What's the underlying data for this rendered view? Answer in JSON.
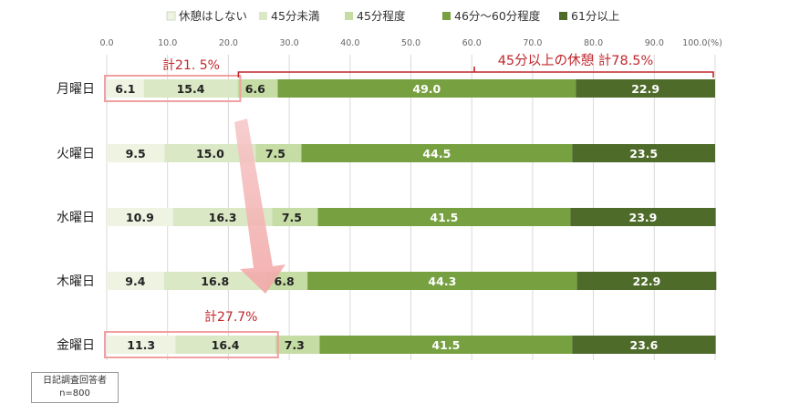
{
  "chart_data": {
    "type": "bar",
    "orientation": "horizontal",
    "stacked": true,
    "unit_label": "(%)",
    "xlim": [
      0,
      100
    ],
    "ticks": [
      "0.0",
      "10.0",
      "20.0",
      "30.0",
      "40.0",
      "50.0",
      "60.0",
      "70.0",
      "80.0",
      "90.0",
      "100.0"
    ],
    "legend_position": "top",
    "grid": true,
    "categories": [
      "月曜日",
      "火曜日",
      "水曜日",
      "木曜日",
      "金曜日"
    ],
    "series": [
      {
        "name": "休憩はしない",
        "color": "#eef3e2",
        "values": [
          6.1,
          9.5,
          10.9,
          9.4,
          11.3
        ]
      },
      {
        "name": "45分未満",
        "color": "#dbe8c6",
        "values": [
          15.4,
          15.0,
          16.3,
          16.8,
          16.4
        ]
      },
      {
        "name": "45分程度",
        "color": "#c5dca4",
        "values": [
          6.6,
          7.5,
          7.5,
          6.8,
          7.3
        ]
      },
      {
        "name": "46分～60分程度",
        "color": "#77a040",
        "values": [
          49.0,
          44.5,
          41.5,
          44.3,
          41.5
        ]
      },
      {
        "name": "61分以上",
        "color": "#4e6b2a",
        "values": [
          22.9,
          23.5,
          23.9,
          22.9,
          23.6
        ]
      }
    ],
    "annotations": {
      "monday_total": "計21. 5%",
      "friday_total": "計27.7%",
      "monday_long_break": "45分以上の休憩 計78.5%"
    },
    "accent_color": "#c0272d"
  },
  "note": {
    "line1": "日記調査回答者",
    "line2": "n=800"
  }
}
